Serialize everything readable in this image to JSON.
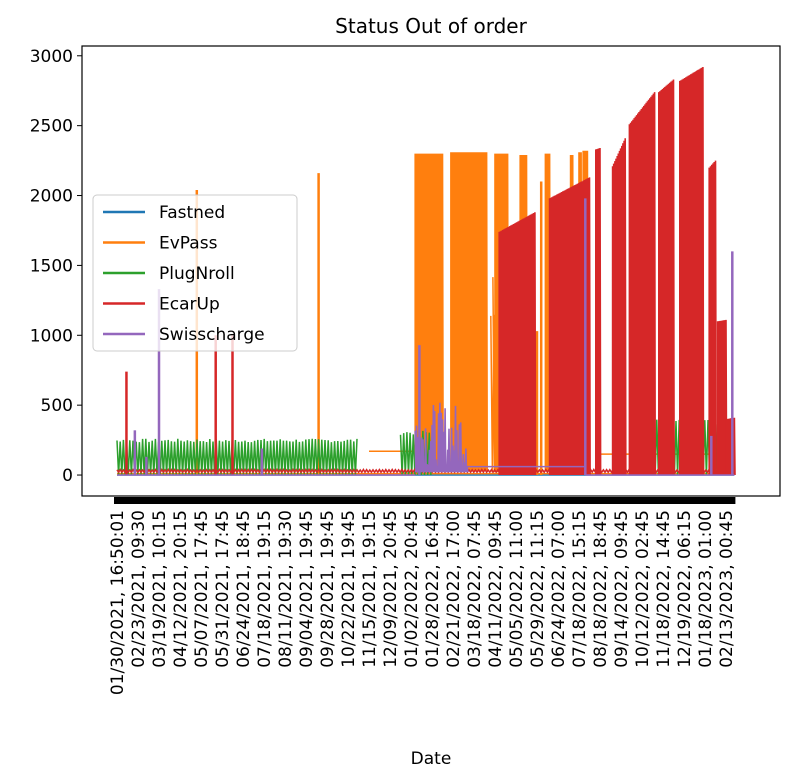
{
  "chart_data": {
    "type": "line",
    "title": "Status Out of order",
    "xlabel": "Date",
    "ylabel": "",
    "ylim": [
      -150,
      3070
    ],
    "yticks": [
      0,
      500,
      1000,
      1500,
      2000,
      2500,
      3000
    ],
    "grid": false,
    "legend_position": "center-left",
    "x_tick_labels": [
      "01/30/2021, 16:50:01",
      "02/23/2021, 09:30",
      "03/19/2021, 10:15",
      "04/12/2021, 20:15",
      "05/07/2021, 17:45",
      "05/31/2021, 17:45",
      "06/24/2021, 18:45",
      "07/18/2021, 19:15",
      "08/11/2021, 19:30",
      "09/04/2021, 19:45",
      "09/28/2021, 19:45",
      "10/22/2021, 19:45",
      "11/15/2021, 19:15",
      "12/09/2021, 20:45",
      "01/02/2022, 20:45",
      "01/28/2022, 16:45",
      "02/21/2022, 17:00",
      "03/18/2022, 07:45",
      "04/11/2022, 09:45",
      "05/05/2022, 11:00",
      "05/29/2022, 11:15",
      "06/24/2022, 07:00",
      "07/18/2022, 15:15",
      "08/18/2022, 18:45",
      "09/14/2022, 09:45",
      "10/12/2022, 02:45",
      "11/18/2022, 14:45",
      "12/19/2022, 06:15",
      "01/18/2023, 01:00",
      "02/13/2023, 00:45"
    ],
    "series": [
      {
        "name": "Fastned",
        "color": "#1f77b4",
        "segments": [
          {
            "range": [
              0,
              29.4
            ],
            "base": 0,
            "peak": 0
          }
        ]
      },
      {
        "name": "EvPass",
        "color": "#ff7f0e",
        "segments": [
          {
            "range": [
              0,
              29.4
            ],
            "base": 10,
            "peak": 0
          },
          {
            "range": [
              12.0,
              14.6
            ],
            "base": 170,
            "peak": 0
          },
          {
            "range": [
              17.8,
              18.3
            ],
            "base": 20,
            "peak": 1200
          },
          {
            "range": [
              17.9,
              19.4
            ],
            "base": 20,
            "peak": 1500
          },
          {
            "range": [
              22.8,
              29.4
            ],
            "base": 150,
            "peak": 0
          }
        ],
        "spikes": [
          {
            "x": 3.8,
            "y": 2040
          },
          {
            "x": 9.6,
            "y": 2160
          },
          {
            "x": 20.0,
            "y": 1030
          },
          {
            "x": 20.2,
            "y": 2100
          }
        ],
        "blocks": [
          {
            "x0": 14.2,
            "x1": 15.5,
            "y": 2300
          },
          {
            "x0": 15.9,
            "x1": 17.6,
            "y": 2310
          },
          {
            "x0": 18.0,
            "x1": 18.6,
            "y": 2300
          },
          {
            "x0": 19.2,
            "x1": 19.5,
            "y": 2290
          },
          {
            "x0": 20.4,
            "x1": 20.6,
            "y": 2300
          },
          {
            "x0": 21.6,
            "x1": 21.7,
            "y": 2290
          },
          {
            "x0": 22.0,
            "x1": 22.1,
            "y": 2310
          },
          {
            "x0": 22.2,
            "x1": 22.4,
            "y": 2320
          }
        ]
      },
      {
        "name": "PlugNroll",
        "color": "#2ca02c",
        "segments": [
          {
            "range": [
              0,
              11.5
            ],
            "base": 0,
            "peak": 260
          },
          {
            "range": [
              13.5,
              15.0
            ],
            "base": 0,
            "peak": 320
          },
          {
            "range": [
              25.4,
              29.4
            ],
            "base": 0,
            "peak": 400
          }
        ]
      },
      {
        "name": "EcarUp",
        "color": "#d62728",
        "segments": [
          {
            "range": [
              0,
              29.4
            ],
            "base": 20,
            "peak": 40
          }
        ],
        "spikes": [
          {
            "x": 0.45,
            "y": 740
          },
          {
            "x": 4.7,
            "y": 1000
          },
          {
            "x": 5.5,
            "y": 1000
          }
        ],
        "blocks": [
          {
            "x0": 18.2,
            "x1": 19.9,
            "y0": 1740,
            "y1": 1880
          },
          {
            "x0": 20.6,
            "x1": 22.5,
            "y0": 1980,
            "y1": 2130
          },
          {
            "x0": 22.8,
            "x1": 23.0,
            "y0": 2330,
            "y1": 2340
          },
          {
            "x0": 23.6,
            "x1": 24.2,
            "y0": 2210,
            "y1": 2410
          },
          {
            "x0": 24.4,
            "x1": 25.6,
            "y0": 2510,
            "y1": 2740
          },
          {
            "x0": 25.8,
            "x1": 26.5,
            "y0": 2740,
            "y1": 2830
          },
          {
            "x0": 26.8,
            "x1": 27.9,
            "y0": 2820,
            "y1": 2920
          },
          {
            "x0": 28.2,
            "x1": 28.5,
            "y0": 2200,
            "y1": 2250
          },
          {
            "x0": 28.6,
            "x1": 29.0,
            "y0": 1100,
            "y1": 1110
          },
          {
            "x0": 29.0,
            "x1": 29.4,
            "y0": 400,
            "y1": 410
          }
        ]
      },
      {
        "name": "Swisscharge",
        "color": "#9467bd",
        "segments": [
          {
            "range": [
              0,
              14.2
            ],
            "base": 0,
            "peak": 0
          },
          {
            "range": [
              14.2,
              17.9
            ],
            "base": 60,
            "peak": 60
          },
          {
            "range": [
              17.9,
              22.3
            ],
            "base": 60,
            "peak": 60
          },
          {
            "range": [
              22.3,
              29.4
            ],
            "base": 0,
            "peak": 0
          }
        ],
        "spikes": [
          {
            "x": 0.85,
            "y": 320
          },
          {
            "x": 1.4,
            "y": 130
          },
          {
            "x": 2.0,
            "y": 1330
          },
          {
            "x": 6.9,
            "y": 190
          },
          {
            "x": 14.4,
            "y": 930
          },
          {
            "x": 22.3,
            "y": 1980
          },
          {
            "x": 28.3,
            "y": 280
          },
          {
            "x": 29.3,
            "y": 1600
          }
        ],
        "noise": {
          "x0": 14.2,
          "x1": 16.7,
          "base": 100,
          "peak": 520
        }
      }
    ]
  }
}
